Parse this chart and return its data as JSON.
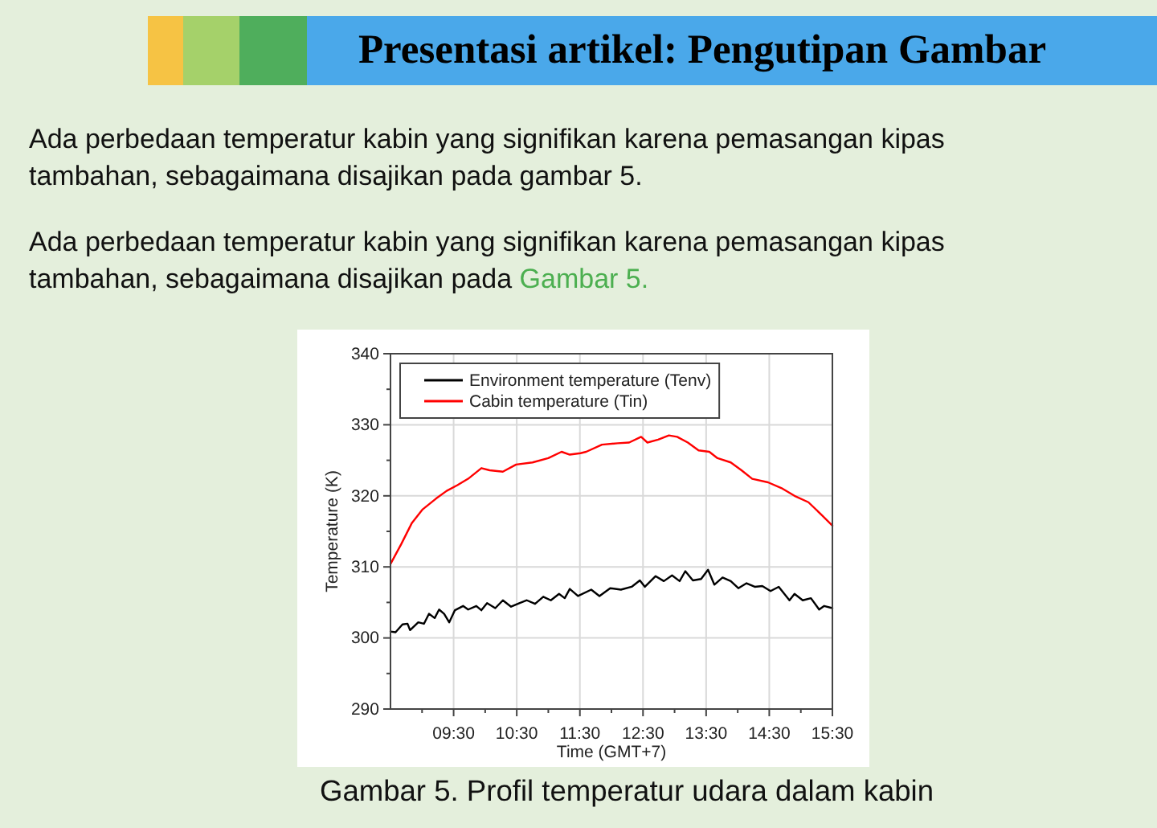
{
  "chart_data": {
    "type": "line",
    "title": "Presentasi artikel: Pengutipan Gambar",
    "annotations": [
      "Ada perbedaan temperatur kabin yang signifikan karena pemasangan kipas tambahan, sebagaimana disajikan pada gambar 5.",
      "Ada perbedaan temperatur kabin yang signifikan karena pemasangan kipas tambahan, sebagaimana disajikan pada Gambar 5.",
      "Gambar 5. Profil temperatur udara dalam kabin"
    ],
    "xlabel": "Time (GMT+7)",
    "ylabel": "Temperature (K)",
    "xlim": [
      8.5,
      15.5
    ],
    "xticks": [
      {
        "value": 9,
        "label": null
      },
      {
        "value": 9.5,
        "label": "09:30"
      },
      {
        "value": 10,
        "label": null
      },
      {
        "value": 10.5,
        "label": "10:30"
      },
      {
        "value": 11,
        "label": null
      },
      {
        "value": 11.5,
        "label": "11:30"
      },
      {
        "value": 12,
        "label": null
      },
      {
        "value": 12.5,
        "label": "12:30"
      },
      {
        "value": 13,
        "label": null
      },
      {
        "value": 13.5,
        "label": "13:30"
      },
      {
        "value": 14,
        "label": null
      },
      {
        "value": 14.5,
        "label": "14:30"
      },
      {
        "value": 15,
        "label": null
      },
      {
        "value": 15.5,
        "label": "15:30"
      }
    ],
    "ylim": [
      290,
      340
    ],
    "yticks": [
      290,
      {
        "value": 295,
        "label": null
      },
      300,
      {
        "value": 305,
        "label": null
      },
      310,
      {
        "value": 315,
        "label": null
      },
      320,
      {
        "value": 325,
        "label": null
      },
      330,
      {
        "value": 335,
        "label": null
      },
      340
    ],
    "grid": true,
    "legend": "top left",
    "series": [
      {
        "name": "Environment temperature (Tenv)",
        "color": "#000000",
        "x": [
          8.5,
          8.58,
          8.69,
          8.77,
          8.81,
          8.94,
          9.03,
          9.11,
          9.2,
          9.27,
          9.35,
          9.43,
          9.52,
          9.65,
          9.73,
          9.86,
          9.94,
          10.03,
          10.16,
          10.28,
          10.41,
          10.54,
          10.66,
          10.79,
          10.92,
          11.04,
          11.17,
          11.26,
          11.34,
          11.47,
          11.68,
          11.81,
          11.98,
          12.15,
          12.32,
          12.45,
          12.53,
          12.7,
          12.83,
          12.96,
          13.08,
          13.17,
          13.29,
          13.42,
          13.53,
          13.63,
          13.76,
          13.89,
          14.01,
          14.14,
          14.27,
          14.39,
          14.52,
          14.65,
          14.82,
          14.9,
          15.03,
          15.16,
          15.29,
          15.37,
          15.5
        ],
        "values": [
          300.9,
          300.8,
          301.9,
          302.0,
          301.1,
          302.2,
          302.0,
          303.4,
          302.8,
          304.0,
          303.4,
          302.2,
          303.9,
          304.5,
          304.0,
          304.5,
          303.9,
          304.9,
          304.2,
          305.3,
          304.4,
          304.9,
          305.3,
          304.8,
          305.8,
          305.3,
          306.2,
          305.6,
          306.9,
          305.9,
          306.8,
          305.9,
          307.0,
          306.8,
          307.2,
          308.1,
          307.2,
          308.7,
          308.0,
          308.8,
          308.0,
          309.4,
          308.1,
          308.3,
          309.6,
          307.5,
          308.5,
          308.0,
          307.0,
          307.7,
          307.2,
          307.3,
          306.6,
          307.2,
          305.3,
          306.2,
          305.3,
          305.6,
          304.0,
          304.5,
          304.2
        ]
      },
      {
        "name": "Cabin temperature (Tin)",
        "color": "#ff0000",
        "x": [
          8.5,
          8.67,
          8.84,
          9.01,
          9.22,
          9.39,
          9.56,
          9.73,
          9.94,
          10.07,
          10.28,
          10.49,
          10.75,
          11.0,
          11.21,
          11.34,
          11.51,
          11.6,
          11.85,
          12.1,
          12.28,
          12.47,
          12.57,
          12.74,
          12.91,
          13.04,
          13.21,
          13.38,
          13.55,
          13.68,
          13.89,
          14.06,
          14.23,
          14.48,
          14.69,
          14.9,
          15.12,
          15.33,
          15.5
        ],
        "values": [
          310.4,
          313.2,
          316.2,
          318.1,
          319.6,
          320.7,
          321.5,
          322.4,
          323.9,
          323.6,
          323.4,
          324.4,
          324.7,
          325.3,
          326.2,
          325.8,
          326.0,
          326.2,
          327.2,
          327.4,
          327.5,
          328.3,
          327.5,
          327.9,
          328.5,
          328.3,
          327.5,
          326.4,
          326.2,
          325.3,
          324.7,
          323.6,
          322.4,
          321.9,
          321.1,
          320.0,
          319.1,
          317.3,
          315.8
        ]
      }
    ]
  }
}
